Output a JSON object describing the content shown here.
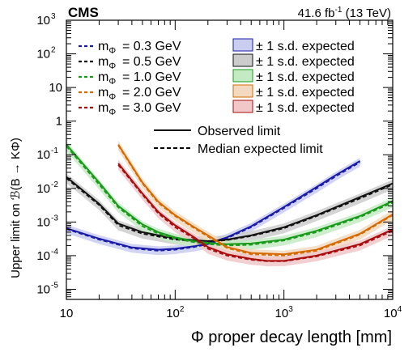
{
  "header": {
    "experiment": "CMS",
    "lumi": "41.6 fb",
    "lumi_exp": "-1",
    "energy": "(13 TeV)"
  },
  "axes": {
    "ylabel": "Upper limit on ℬ(B → KΦ)",
    "xlabel": "Φ proper decay length [mm]"
  },
  "legend": {
    "observed": "Observed limit",
    "expected": "Median expected limit",
    "band_label": "± 1 s.d. expected"
  },
  "colors": {
    "m03": "#1a1aa8",
    "m05": "#111111",
    "m10": "#1a9a1a",
    "m20": "#d46a00",
    "m30": "#a80d0d",
    "band_m03": "#c9cdf0",
    "band_m05": "#cccccc",
    "band_m10": "#c4eac4",
    "band_m20": "#f2d9c0",
    "band_m30": "#f0c8ca"
  },
  "chart_data": {
    "type": "line",
    "title": "",
    "xlabel": "Φ proper decay length [mm]",
    "ylabel": "Upper limit on ℬ(B → KΦ)",
    "xscale": "log",
    "yscale": "log",
    "xlim": [
      10,
      10000
    ],
    "ylim": [
      5e-06,
      1000
    ],
    "x_ticks": [
      {
        "value": 10,
        "label": "10",
        "exp": ""
      },
      {
        "value": 100,
        "label": "10",
        "exp": "2"
      },
      {
        "value": 1000,
        "label": "10",
        "exp": "3"
      },
      {
        "value": 10000,
        "label": "10",
        "exp": "4"
      }
    ],
    "y_ticks": [
      {
        "value": 1e-05,
        "label": "10",
        "exp": "-5"
      },
      {
        "value": 0.0001,
        "label": "10",
        "exp": "-4"
      },
      {
        "value": 0.001,
        "label": "10",
        "exp": "-3"
      },
      {
        "value": 0.01,
        "label": "10",
        "exp": "-2"
      },
      {
        "value": 0.1,
        "label": "10",
        "exp": "-1"
      },
      {
        "value": 1,
        "label": "1",
        "exp": ""
      },
      {
        "value": 10,
        "label": "10",
        "exp": ""
      },
      {
        "value": 100,
        "label": "10",
        "exp": "2"
      },
      {
        "value": 1000,
        "label": "10",
        "exp": "3"
      }
    ],
    "legend_position": "top",
    "series": [
      {
        "name": "m_Φ = 0.3 GeV",
        "mass_label": "= 0.3 GeV",
        "color_key": "m03",
        "x": [
          10,
          20,
          40,
          70,
          100,
          150,
          200,
          300,
          500,
          1000,
          2000,
          3000,
          5000
        ],
        "observed": [
          0.00065,
          0.00032,
          0.000175,
          0.00015,
          0.00016,
          0.00019,
          0.00023,
          0.00035,
          0.00075,
          0.0028,
          0.011,
          0.025,
          0.065
        ],
        "expected": [
          0.00062,
          0.0003,
          0.000165,
          0.00014,
          0.00015,
          0.00018,
          0.00022,
          0.00033,
          0.0007,
          0.0026,
          0.01,
          0.023,
          0.06
        ],
        "band_factor": 1.35
      },
      {
        "name": "m_Φ = 0.5 GeV",
        "mass_label": "= 0.5 GeV",
        "color_key": "m05",
        "x": [
          10,
          20,
          30,
          50,
          100,
          200,
          300,
          500,
          1000,
          2000,
          5000,
          10000
        ],
        "observed": [
          0.022,
          0.0035,
          0.0009,
          0.0005,
          0.00032,
          0.00027,
          0.0003,
          0.0004,
          0.0007,
          0.0016,
          0.0055,
          0.014
        ],
        "expected": [
          0.02,
          0.0032,
          0.0008,
          0.00045,
          0.0003,
          0.00026,
          0.00029,
          0.00038,
          0.00065,
          0.0015,
          0.005,
          0.013
        ],
        "band_factor": 1.4
      },
      {
        "name": "m_Φ = 1.0 GeV",
        "mass_label": "= 1.0 GeV",
        "color_key": "m10",
        "x": [
          10,
          20,
          30,
          50,
          70,
          100,
          150,
          200,
          300,
          500,
          1000,
          2000,
          5000,
          10000
        ],
        "observed": [
          0.2,
          0.015,
          0.003,
          0.00085,
          0.0005,
          0.00035,
          0.00027,
          0.00024,
          0.00022,
          0.00023,
          0.0003,
          0.00055,
          0.0015,
          0.0042
        ],
        "expected": [
          0.18,
          0.013,
          0.0027,
          0.00075,
          0.00045,
          0.00032,
          0.00025,
          0.00022,
          0.0002,
          0.00021,
          0.00028,
          0.0005,
          0.0014,
          0.0038
        ],
        "band_factor": 1.4
      },
      {
        "name": "m_Φ = 2.0 GeV",
        "mass_label": "= 2.0 GeV",
        "color_key": "m20",
        "x": [
          30,
          50,
          70,
          100,
          150,
          200,
          300,
          500,
          1000,
          2000,
          5000,
          10000
        ],
        "observed": [
          0.2,
          0.015,
          0.004,
          0.0016,
          0.0007,
          0.0004,
          0.00018,
          0.00012,
          0.00011,
          0.00015,
          0.00045,
          0.0017
        ],
        "expected": [
          0.19,
          0.014,
          0.0037,
          0.0015,
          0.00065,
          0.00037,
          0.00017,
          0.00011,
          0.0001,
          0.00014,
          0.00042,
          0.0016
        ],
        "band_factor": 1.4
      },
      {
        "name": "m_Φ = 3.0 GeV",
        "mass_label": "= 3.0 GeV",
        "color_key": "m30",
        "x": [
          30,
          50,
          70,
          100,
          150,
          200,
          300,
          500,
          700,
          1000,
          2000,
          5000,
          10000
        ],
        "observed": [
          0.055,
          0.007,
          0.002,
          0.0008,
          0.00035,
          0.00018,
          0.00011,
          8e-05,
          7e-05,
          7e-05,
          0.0001,
          0.00022,
          0.0006
        ],
        "expected": [
          0.05,
          0.0065,
          0.0018,
          0.0007,
          0.00032,
          0.00016,
          0.0001,
          7.5e-05,
          6.8e-05,
          6.8e-05,
          9.5e-05,
          0.0002,
          0.00055
        ],
        "band_factor": 1.4
      }
    ]
  }
}
